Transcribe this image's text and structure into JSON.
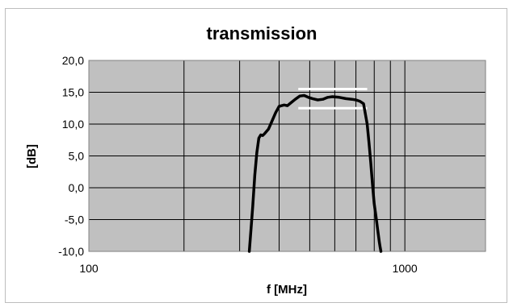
{
  "chart_data": {
    "type": "line",
    "title": "transmission",
    "xlabel": "f [MHz]",
    "ylabel": "[dB]",
    "x_scale": "log",
    "xlim": [
      100,
      1800
    ],
    "ylim": [
      -10,
      20
    ],
    "x_ticks": [
      100,
      1000
    ],
    "x_tick_labels": [
      "100",
      "1000"
    ],
    "x_minor_gridlines": [
      200,
      300,
      400,
      500,
      600,
      700,
      800,
      900,
      1000
    ],
    "y_ticks": [
      -10,
      -5,
      0,
      5,
      10,
      15,
      20
    ],
    "y_tick_labels": [
      "-10,0",
      "-5,0",
      "0,0",
      "5,0",
      "10,0",
      "15,0",
      "20,0"
    ],
    "grid": true,
    "plot_background": "#c0c0c0",
    "gridline_color": "#000000",
    "series": [
      {
        "color": "#000000",
        "x": [
          322,
          330,
          335,
          340,
          345,
          350,
          355,
          360,
          370,
          380,
          390,
          400,
          415,
          425,
          435,
          450,
          465,
          480,
          495,
          510,
          530,
          550,
          570,
          590,
          620,
          650,
          680,
          700,
          720,
          740,
          760,
          770,
          780,
          790,
          800,
          810,
          820,
          830,
          835,
          840
        ],
        "y": [
          -10.0,
          -3.0,
          2.0,
          5.5,
          7.8,
          8.3,
          8.2,
          8.5,
          9.2,
          10.5,
          11.8,
          12.8,
          13.0,
          12.9,
          13.3,
          13.9,
          14.4,
          14.5,
          14.2,
          14.0,
          13.8,
          13.9,
          14.2,
          14.3,
          14.2,
          14.0,
          13.9,
          13.8,
          13.6,
          13.2,
          10.0,
          7.0,
          4.0,
          0.5,
          -2.5,
          -4.5,
          -6.5,
          -8.5,
          -9.3,
          -10.0
        ]
      }
    ],
    "annotations": [
      {
        "type": "hline",
        "y": 15.5,
        "x_range": [
          460,
          760
        ],
        "color": "#ffffff"
      },
      {
        "type": "hline",
        "y": 12.5,
        "x_range": [
          460,
          760
        ],
        "color": "#ffffff"
      }
    ]
  }
}
